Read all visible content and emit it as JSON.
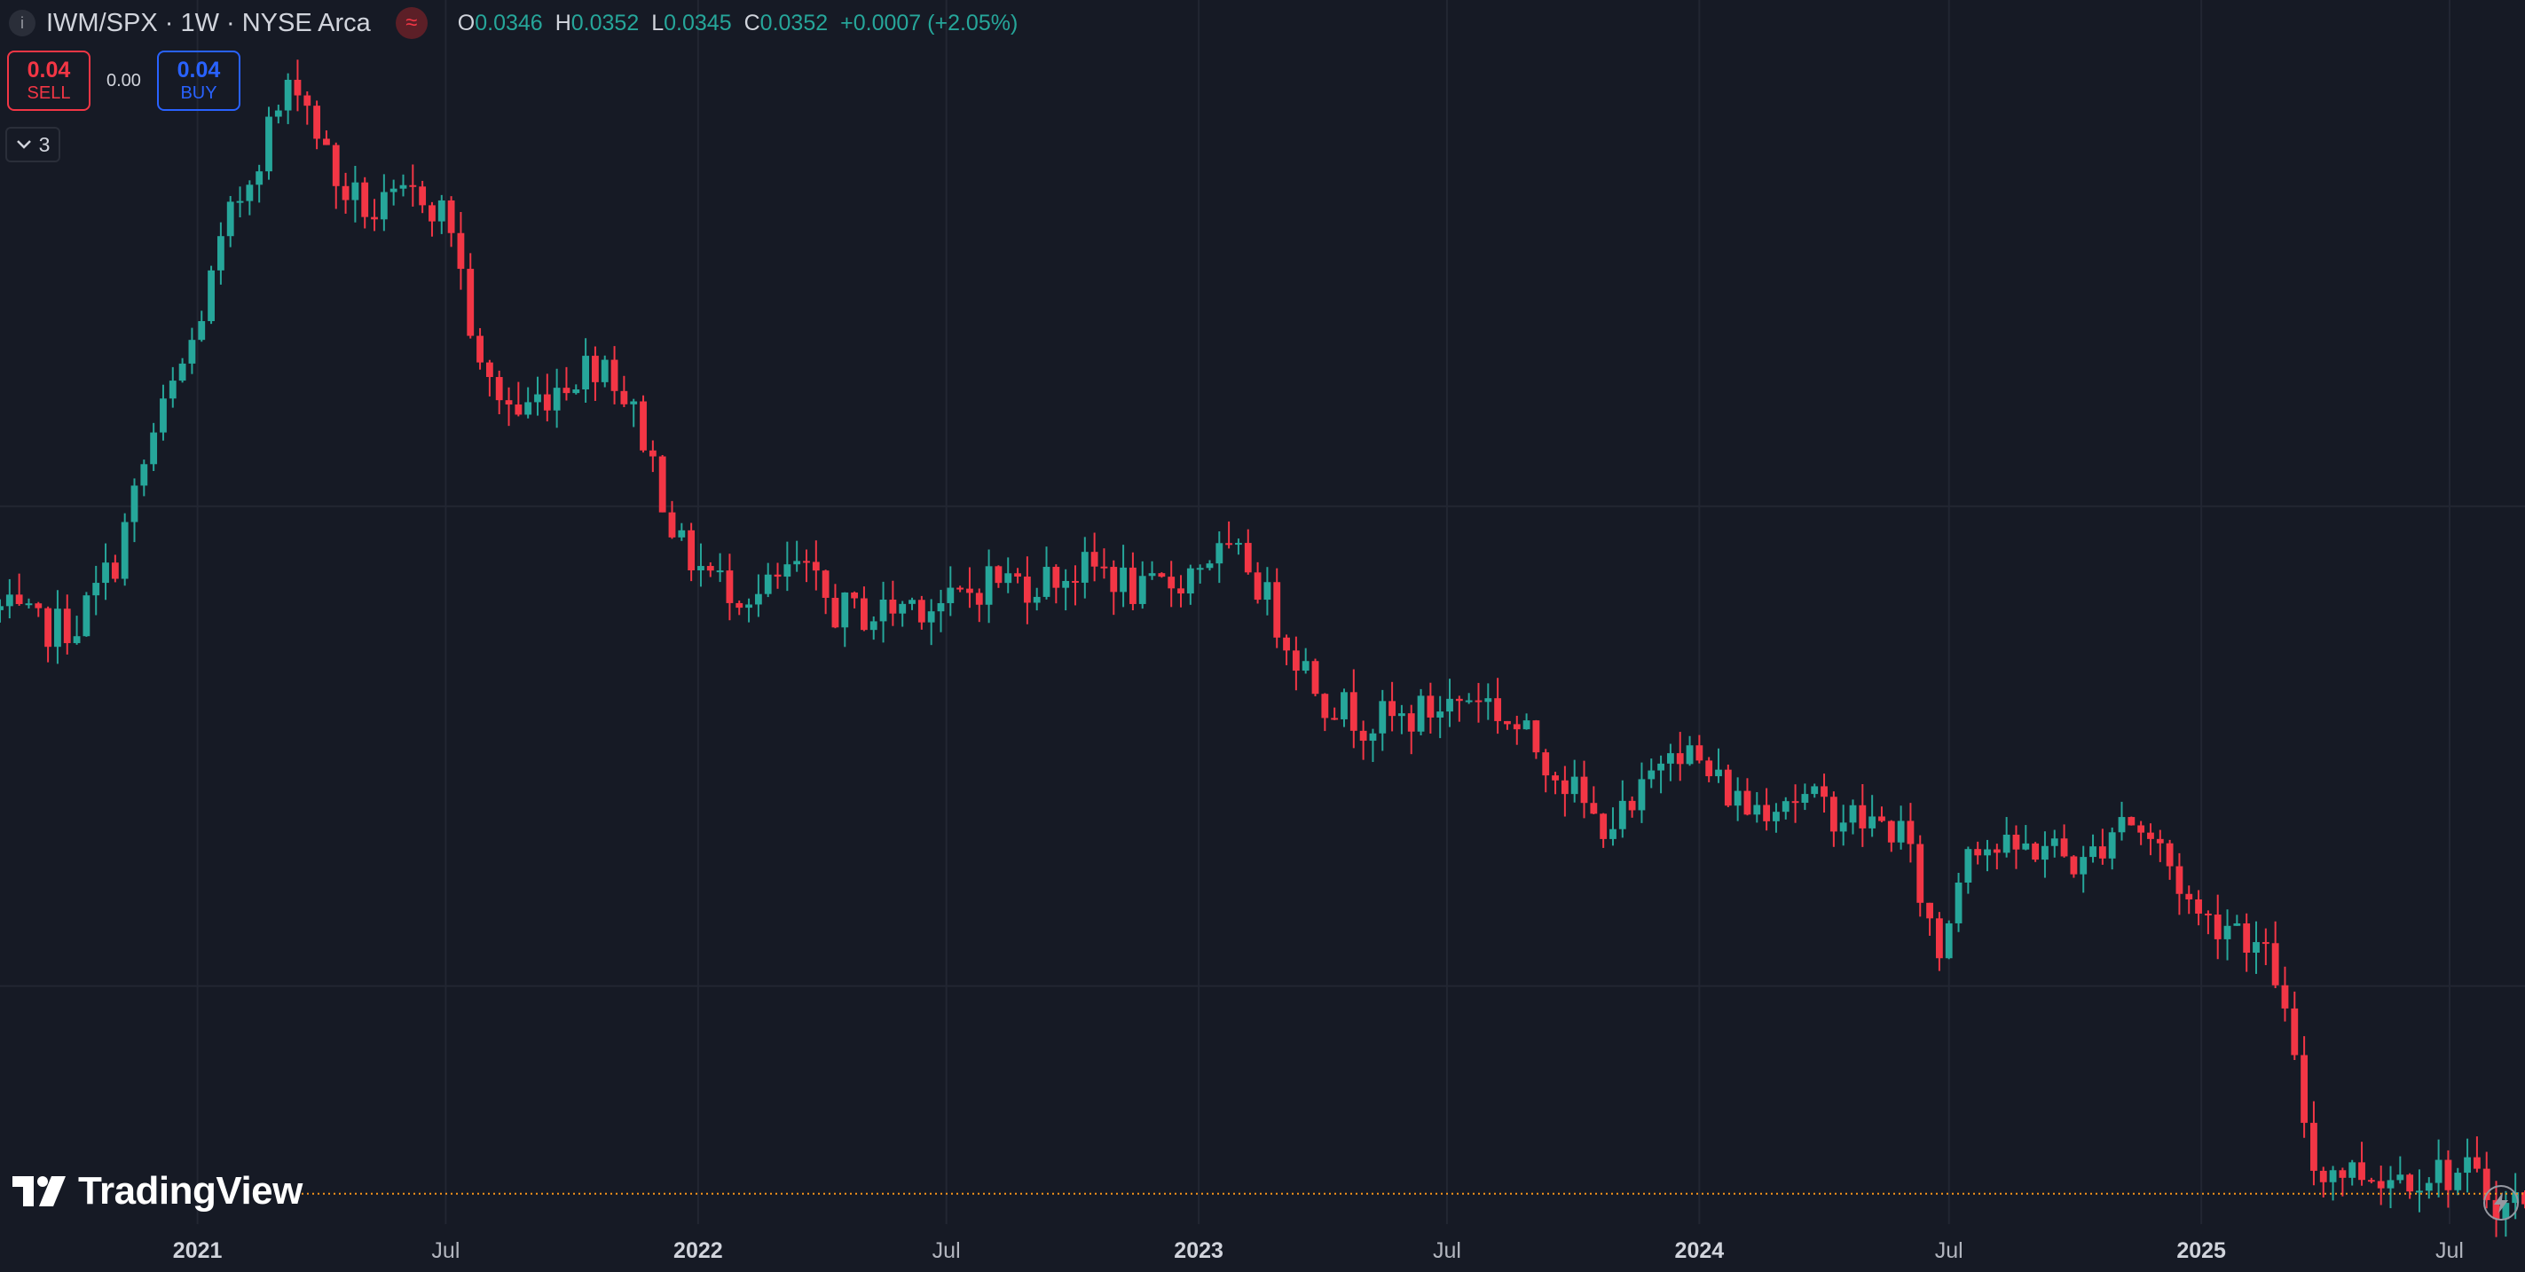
{
  "header": {
    "symbol_title": "IWM/SPX · 1W · NYSE Arca",
    "info_glyph": "i",
    "indicator_glyph": "≈",
    "ohlc": {
      "o_label": "O",
      "o_value": "0.0346",
      "h_label": "H",
      "h_value": "0.0352",
      "l_label": "L",
      "l_value": "0.0345",
      "c_label": "C",
      "c_value": "0.0352",
      "change": "+0.0007 (+2.05%)"
    }
  },
  "trade": {
    "sell_price": "0.04",
    "sell_label": "SELL",
    "spread": "0.00",
    "buy_price": "0.04",
    "buy_label": "BUY"
  },
  "indicators_toggle": {
    "count": "3"
  },
  "branding": {
    "logo_text": "TradingView"
  },
  "icons": [
    "info-icon",
    "indicator-icon",
    "chevron-down-icon",
    "tradingview-logo-icon",
    "flash-icon"
  ],
  "colors": {
    "background": "#161a25",
    "up": "#26a69a",
    "down": "#f23645",
    "grid": "#222632",
    "last_price_line": "#f7931a"
  },
  "chart_data": {
    "type": "candlestick",
    "interval": "1W",
    "grid": true,
    "last_price_line": 0.0352,
    "x_axis_labels": [
      {
        "label": "2021",
        "date": "2021-01-01",
        "major": true
      },
      {
        "label": "Jul",
        "date": "2021-07-01",
        "major": false
      },
      {
        "label": "2022",
        "date": "2022-01-01",
        "major": true
      },
      {
        "label": "Jul",
        "date": "2022-07-01",
        "major": false
      },
      {
        "label": "2023",
        "date": "2023-01-01",
        "major": true
      },
      {
        "label": "Jul",
        "date": "2023-07-01",
        "major": false
      },
      {
        "label": "2024",
        "date": "2024-01-01",
        "major": true
      },
      {
        "label": "Jul",
        "date": "2024-07-01",
        "major": false
      },
      {
        "label": "2025",
        "date": "2025-01-01",
        "major": true
      },
      {
        "label": "Jul",
        "date": "2025-07-01",
        "major": false
      }
    ],
    "x_range": [
      "2020-08-10",
      "2025-08-25"
    ],
    "y_range": [
      0.0345,
      0.0606
    ],
    "trend": [
      [
        "2020-08-10",
        0.0479
      ],
      [
        "2020-09-07",
        0.0475
      ],
      [
        "2020-10-05",
        0.0476
      ],
      [
        "2020-11-02",
        0.049
      ],
      [
        "2020-11-30",
        0.0517
      ],
      [
        "2020-12-28",
        0.0537
      ],
      [
        "2021-01-25",
        0.0564
      ],
      [
        "2021-02-22",
        0.0584
      ],
      [
        "2021-03-15",
        0.0595
      ],
      [
        "2021-04-12",
        0.0572
      ],
      [
        "2021-05-10",
        0.0565
      ],
      [
        "2021-06-14",
        0.057
      ],
      [
        "2021-07-05",
        0.0563
      ],
      [
        "2021-07-26",
        0.053
      ],
      [
        "2021-08-23",
        0.0522
      ],
      [
        "2021-09-20",
        0.0528
      ],
      [
        "2021-10-11",
        0.0532
      ],
      [
        "2021-10-25",
        0.0534
      ],
      [
        "2021-11-22",
        0.0517
      ],
      [
        "2021-12-20",
        0.0492
      ],
      [
        "2022-01-17",
        0.0485
      ],
      [
        "2022-02-14",
        0.0482
      ],
      [
        "2022-03-14",
        0.0488
      ],
      [
        "2022-04-11",
        0.0479
      ],
      [
        "2022-05-09",
        0.0478
      ],
      [
        "2022-06-06",
        0.0481
      ],
      [
        "2022-07-04",
        0.048
      ],
      [
        "2022-08-01",
        0.0486
      ],
      [
        "2022-08-29",
        0.0485
      ],
      [
        "2022-09-26",
        0.0487
      ],
      [
        "2022-10-24",
        0.0488
      ],
      [
        "2022-11-21",
        0.0482
      ],
      [
        "2022-12-19",
        0.0486
      ],
      [
        "2023-01-09",
        0.0491
      ],
      [
        "2023-02-06",
        0.0489
      ],
      [
        "2023-03-06",
        0.0473
      ],
      [
        "2023-04-03",
        0.046
      ],
      [
        "2023-05-01",
        0.0455
      ],
      [
        "2023-05-29",
        0.0455
      ],
      [
        "2023-06-26",
        0.0458
      ],
      [
        "2023-07-24",
        0.0461
      ],
      [
        "2023-08-21",
        0.0453
      ],
      [
        "2023-09-18",
        0.0445
      ],
      [
        "2023-10-16",
        0.0433
      ],
      [
        "2023-11-13",
        0.0434
      ],
      [
        "2023-12-11",
        0.0452
      ],
      [
        "2024-01-08",
        0.0443
      ],
      [
        "2024-02-05",
        0.0436
      ],
      [
        "2024-03-04",
        0.0439
      ],
      [
        "2024-04-01",
        0.0436
      ],
      [
        "2024-04-29",
        0.0433
      ],
      [
        "2024-05-27",
        0.0431
      ],
      [
        "2024-06-24",
        0.0404
      ],
      [
        "2024-07-15",
        0.043
      ],
      [
        "2024-08-12",
        0.0426
      ],
      [
        "2024-09-09",
        0.0428
      ],
      [
        "2024-10-07",
        0.0423
      ],
      [
        "2024-11-04",
        0.0435
      ],
      [
        "2024-12-02",
        0.0427
      ],
      [
        "2024-12-30",
        0.0412
      ],
      [
        "2025-01-27",
        0.0411
      ],
      [
        "2025-02-24",
        0.04
      ],
      [
        "2025-03-24",
        0.0358
      ],
      [
        "2025-04-21",
        0.0357
      ],
      [
        "2025-05-19",
        0.0356
      ],
      [
        "2025-06-16",
        0.0357
      ],
      [
        "2025-07-14",
        0.0356
      ],
      [
        "2025-08-11",
        0.0349
      ],
      [
        "2025-08-25",
        0.0352
      ]
    ]
  }
}
